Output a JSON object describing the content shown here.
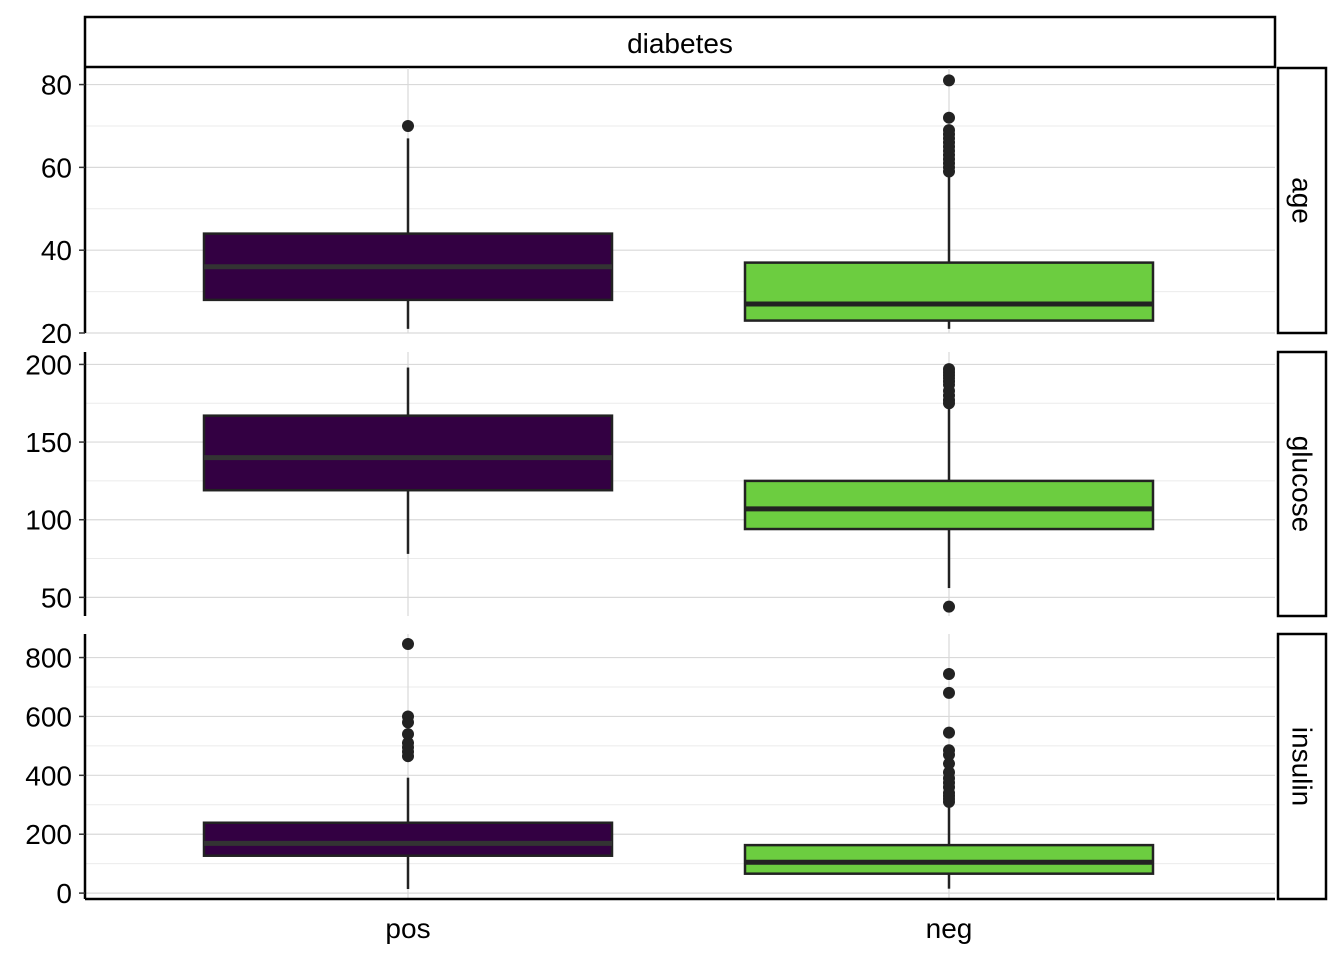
{
  "chart_data": {
    "type": "boxplot",
    "facet_title": "diabetes",
    "categories": [
      "pos",
      "neg"
    ],
    "colors": {
      "pos": "#330042",
      "neg": "#6ccd40",
      "outline": "#222222",
      "median_pos": "#333333",
      "median_neg": "#222222"
    },
    "grid": true,
    "panels": [
      {
        "label": "age",
        "ylim": [
          20,
          84
        ],
        "ticks": [
          20,
          40,
          60,
          80
        ],
        "tick_labels": [
          "20",
          "40",
          "60",
          "80"
        ],
        "boxes": [
          {
            "category": "pos",
            "lower_whisker": 21,
            "q1": 28,
            "median": 36,
            "q3": 44,
            "upper_whisker": 67,
            "outliers": [
              70
            ]
          },
          {
            "category": "neg",
            "lower_whisker": 21,
            "q1": 23,
            "median": 27,
            "q3": 37,
            "upper_whisker": 58,
            "outliers": [
              59,
              60,
              61,
              62,
              63,
              64,
              65,
              66,
              67,
              68,
              69,
              72,
              81
            ]
          }
        ]
      },
      {
        "label": "glucose",
        "ylim": [
          38,
          208
        ],
        "ticks": [
          50,
          100,
          150,
          200
        ],
        "tick_labels": [
          "50",
          "100",
          "150",
          "200"
        ],
        "boxes": [
          {
            "category": "pos",
            "lower_whisker": 78,
            "q1": 119,
            "median": 140,
            "q3": 167,
            "upper_whisker": 198,
            "outliers": []
          },
          {
            "category": "neg",
            "lower_whisker": 56,
            "q1": 94,
            "median": 107,
            "q3": 125,
            "upper_whisker": 172,
            "outliers": [
              44,
              175,
              177,
              180,
              183,
              187,
              189,
              191,
              193,
              195,
              197
            ]
          }
        ]
      },
      {
        "label": "insulin",
        "ylim": [
          -20,
          880
        ],
        "ticks": [
          0,
          200,
          400,
          600,
          800
        ],
        "tick_labels": [
          "0",
          "200",
          "400",
          "600",
          "800"
        ],
        "boxes": [
          {
            "category": "pos",
            "lower_whisker": 14,
            "q1": 127,
            "median": 169,
            "q3": 239,
            "upper_whisker": 392,
            "outliers": [
              465,
              480,
              495,
              510,
              540,
              580,
              600,
              846
            ]
          },
          {
            "category": "neg",
            "lower_whisker": 15,
            "q1": 66,
            "median": 105,
            "q3": 163,
            "upper_whisker": 300,
            "outliers": [
              310,
              320,
              330,
              340,
              360,
              375,
              390,
              410,
              440,
              470,
              485,
              545,
              680,
              744
            ]
          }
        ]
      }
    ]
  }
}
